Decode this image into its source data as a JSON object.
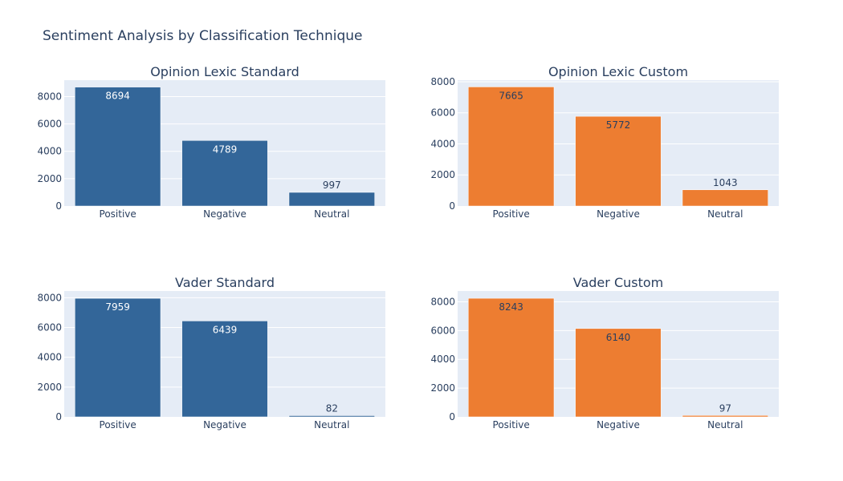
{
  "title": "Sentiment Analysis by Classification Technique",
  "colors": {
    "standard": "#336699",
    "custom": "#ed7d31",
    "plot_bg": "#e5ecf6",
    "grid": "#ffffff",
    "text": "#2a3f5f"
  },
  "chart_data": [
    {
      "type": "bar",
      "title": "Opinion Lexic Standard",
      "categories": [
        "Positive",
        "Negative",
        "Neutral"
      ],
      "values": [
        8694,
        4789,
        997
      ],
      "ylim": [
        0,
        9200
      ],
      "yticks": [
        0,
        2000,
        4000,
        6000,
        8000
      ],
      "color": "#336699",
      "grid": true
    },
    {
      "type": "bar",
      "title": "Opinion Lexic Custom",
      "categories": [
        "Positive",
        "Negative",
        "Neutral"
      ],
      "values": [
        7665,
        5772,
        1043
      ],
      "ylim": [
        0,
        8100
      ],
      "yticks": [
        0,
        2000,
        4000,
        6000,
        8000
      ],
      "color": "#ed7d31",
      "grid": true
    },
    {
      "type": "bar",
      "title": "Vader Standard",
      "categories": [
        "Positive",
        "Negative",
        "Neutral"
      ],
      "values": [
        7959,
        6439,
        82
      ],
      "ylim": [
        0,
        8450
      ],
      "yticks": [
        0,
        2000,
        4000,
        6000,
        8000
      ],
      "color": "#336699",
      "grid": true
    },
    {
      "type": "bar",
      "title": "Vader Custom",
      "categories": [
        "Positive",
        "Negative",
        "Neutral"
      ],
      "values": [
        8243,
        6140,
        97
      ],
      "ylim": [
        0,
        8750
      ],
      "yticks": [
        0,
        2000,
        4000,
        6000,
        8000
      ],
      "color": "#ed7d31",
      "grid": true
    }
  ]
}
